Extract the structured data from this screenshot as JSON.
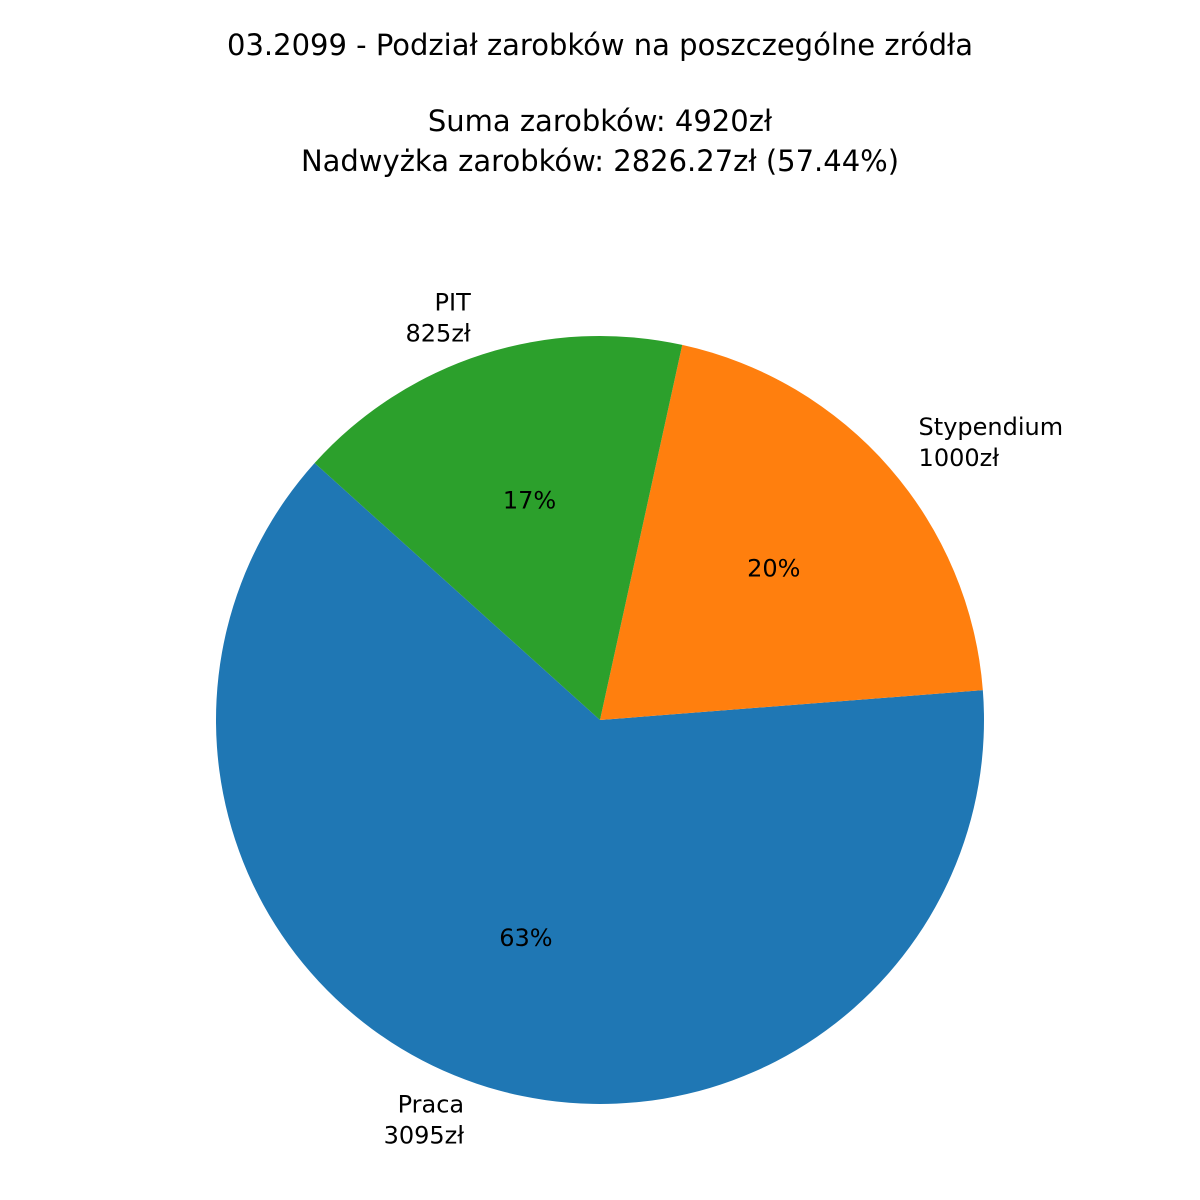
{
  "chart_data": {
    "type": "pie",
    "title_lines": [
      "03.2099 - Podział zarobków na poszczególne zródła",
      "Suma zarobków: 4920zł",
      "Nadwyżka zarobków: 2826.27zł (57.44%)"
    ],
    "slices": [
      {
        "label": "Praca",
        "value_label": "3095zł",
        "value": 3095,
        "percent_label": "63%",
        "color": "#1f77b4"
      },
      {
        "label": "Stypendium",
        "value_label": "1000zł",
        "value": 1000,
        "percent_label": "20%",
        "color": "#ff7f0e"
      },
      {
        "label": "PIT",
        "value_label": "825zł",
        "value": 825,
        "percent_label": "17%",
        "color": "#2ca02c"
      }
    ],
    "start_angle_deg": 138,
    "direction": "counterclockwise"
  }
}
